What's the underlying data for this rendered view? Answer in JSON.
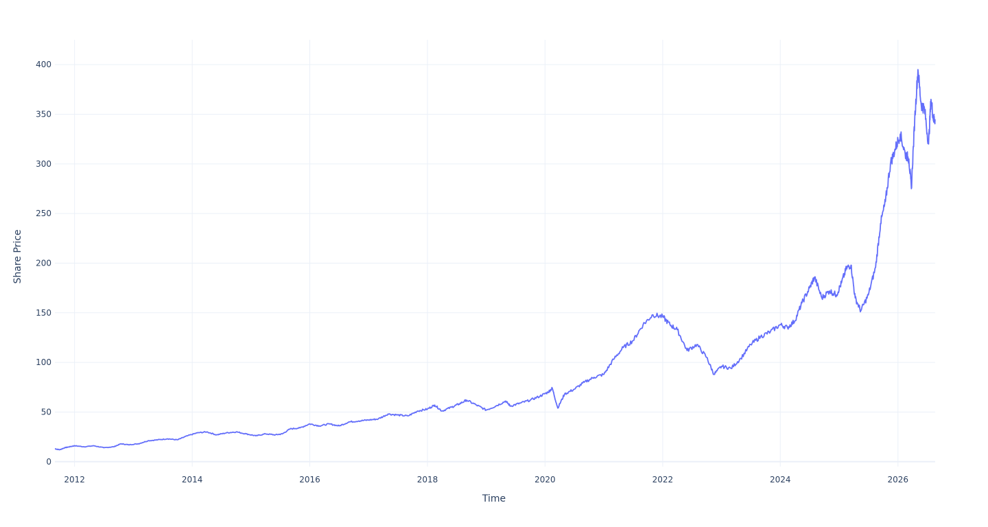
{
  "chart_data": {
    "type": "line",
    "title": "",
    "xlabel": "Time",
    "ylabel": "Share Price",
    "xlim": [
      "2011-09-01",
      "2026-08-20"
    ],
    "ylim": [
      -5,
      425
    ],
    "x_tick_labels": [
      "2012",
      "2014",
      "2016",
      "2018",
      "2020",
      "2022",
      "2024",
      "2026"
    ],
    "x_tick_dates": [
      "2012-01-01",
      "2014-01-01",
      "2016-01-01",
      "2018-01-01",
      "2020-01-01",
      "2022-01-01",
      "2024-01-01",
      "2026-01-01"
    ],
    "y_tick_values": [
      0,
      50,
      100,
      150,
      200,
      250,
      300,
      350,
      400
    ],
    "y_tick_labels": [
      "0",
      "50",
      "100",
      "150",
      "200",
      "250",
      "300",
      "350",
      "400"
    ],
    "grid": true,
    "legend": "none",
    "line_color": "#636efa",
    "series": [
      {
        "x": [
          "2011-09-01",
          "2011-10-01",
          "2011-11-01",
          "2011-12-01",
          "2012-01-01",
          "2012-03-01",
          "2012-05-01",
          "2012-07-01",
          "2012-09-01",
          "2012-10-15",
          "2012-12-01",
          "2013-02-01",
          "2013-04-01",
          "2013-06-01",
          "2013-08-01",
          "2013-10-01",
          "2013-12-01",
          "2014-02-01",
          "2014-04-01",
          "2014-06-01",
          "2014-08-01",
          "2014-10-01",
          "2014-12-01",
          "2015-02-01",
          "2015-04-01",
          "2015-06-01",
          "2015-07-15",
          "2015-09-01",
          "2015-11-01",
          "2016-01-01",
          "2016-03-01",
          "2016-05-01",
          "2016-07-01",
          "2016-09-01",
          "2016-11-01",
          "2017-01-01",
          "2017-03-01",
          "2017-05-01",
          "2017-07-01",
          "2017-09-01",
          "2017-11-01",
          "2018-01-01",
          "2018-02-15",
          "2018-04-01",
          "2018-06-01",
          "2018-07-15",
          "2018-09-01",
          "2018-11-01",
          "2019-01-01",
          "2019-03-01",
          "2019-05-01",
          "2019-06-01",
          "2019-08-01",
          "2019-10-01",
          "2019-12-01",
          "2020-01-20",
          "2020-02-15",
          "2020-03-20",
          "2020-05-01",
          "2020-07-01",
          "2020-09-01",
          "2020-11-01",
          "2021-01-01",
          "2021-03-01",
          "2021-05-01",
          "2021-07-01",
          "2021-09-01",
          "2021-11-01",
          "2022-01-01",
          "2022-02-15",
          "2022-04-01",
          "2022-06-01",
          "2022-08-01",
          "2022-10-01",
          "2022-11-15",
          "2023-01-01",
          "2023-03-01",
          "2023-05-01",
          "2023-07-01",
          "2023-09-01",
          "2023-11-01",
          "2024-01-01",
          "2024-02-15",
          "2024-04-01",
          "2024-05-15",
          "2024-07-01",
          "2024-08-01",
          "2024-09-15",
          "2024-11-01",
          "2024-12-15",
          "2025-01-15",
          "2025-02-15",
          "2025-03-15",
          "2025-04-10",
          "2025-05-15",
          "2025-07-01",
          "2025-08-15",
          "2025-09-15",
          "2025-10-15",
          "2025-11-15",
          "2025-12-15",
          "2026-01-15",
          "2026-02-15",
          "2026-03-10",
          "2026-03-25",
          "2026-04-15",
          "2026-05-05",
          "2026-05-25",
          "2026-06-15",
          "2026-07-10",
          "2026-07-25",
          "2026-08-10",
          "2026-08-20"
        ],
        "y": [
          13,
          12,
          14,
          15,
          16,
          15,
          16,
          14,
          15,
          18,
          17,
          18,
          21,
          22,
          23,
          22,
          26,
          29,
          30,
          27,
          29,
          30,
          28,
          26,
          28,
          27,
          28,
          33,
          34,
          38,
          36,
          38,
          36,
          40,
          41,
          42,
          43,
          48,
          47,
          46,
          51,
          53,
          57,
          51,
          55,
          58,
          62,
          57,
          52,
          56,
          61,
          56,
          59,
          62,
          66,
          70,
          74,
          54,
          68,
          73,
          80,
          85,
          88,
          103,
          115,
          122,
          138,
          148,
          146,
          138,
          133,
          112,
          118,
          105,
          88,
          96,
          94,
          104,
          118,
          126,
          131,
          138,
          135,
          142,
          160,
          175,
          186,
          165,
          172,
          168,
          180,
          195,
          198,
          165,
          152,
          168,
          196,
          240,
          262,
          300,
          315,
          330,
          310,
          305,
          275,
          345,
          395,
          360,
          355,
          320,
          365,
          345,
          345
        ]
      }
    ]
  }
}
